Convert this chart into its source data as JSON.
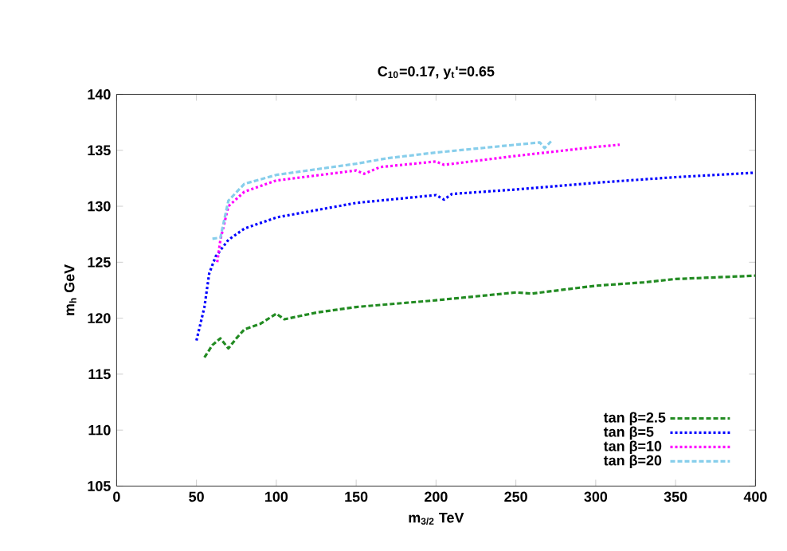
{
  "chart_data": {
    "type": "line",
    "title": "C$_{10}$=0.17,  y$_{t}$'=0.65",
    "xlabel": "m$_{3/2}$ TeV",
    "ylabel": "m$_{h}$ GeV",
    "xlim": [
      0,
      400
    ],
    "ylim": [
      105,
      140
    ],
    "xticks": [
      0,
      50,
      100,
      150,
      200,
      250,
      300,
      350,
      400
    ],
    "yticks": [
      105,
      110,
      115,
      120,
      125,
      130,
      135,
      140
    ],
    "grid": false,
    "legend": "bottom right",
    "marker": "none",
    "series": [
      {
        "name": "tan β=2.5",
        "color": "#228b22",
        "line_style": "dashed",
        "x": [
          55,
          60,
          65,
          70,
          75,
          80,
          90,
          100,
          105,
          125,
          150,
          200,
          250,
          260,
          300,
          330,
          350,
          400
        ],
        "values": [
          116.5,
          117.6,
          118.2,
          117.3,
          118.2,
          119,
          119.5,
          120.4,
          119.9,
          120.5,
          121,
          121.6,
          122.3,
          122.2,
          122.9,
          123.2,
          123.5,
          123.8
        ]
      },
      {
        "name": "tan β=5",
        "color": "#0000ff",
        "line_style": "dotted",
        "x": [
          50,
          55,
          58,
          62,
          70,
          80,
          100,
          150,
          200,
          205,
          210,
          250,
          300,
          350,
          400
        ],
        "values": [
          118,
          121,
          124,
          125.5,
          127,
          128,
          129,
          130.3,
          131,
          130.6,
          131.1,
          131.5,
          132.1,
          132.6,
          133
        ]
      },
      {
        "name": "tan β=10",
        "color": "#ff00ff",
        "line_style": "dotted",
        "x": [
          63,
          65,
          70,
          80,
          100,
          150,
          155,
          165,
          200,
          205,
          250,
          300,
          315
        ],
        "values": [
          125,
          127,
          130,
          131.3,
          132.3,
          133.2,
          132.9,
          133.5,
          134,
          133.7,
          134.5,
          135.3,
          135.5
        ]
      },
      {
        "name": "tan β=20",
        "color": "#87ceeb",
        "line_style": "dashed",
        "x": [
          60,
          65,
          70,
          80,
          100,
          150,
          170,
          200,
          250,
          265,
          268,
          272
        ],
        "values": [
          127.1,
          127.2,
          130.5,
          132,
          132.8,
          133.8,
          134.3,
          134.8,
          135.5,
          135.7,
          135.2,
          135.8
        ]
      }
    ]
  }
}
